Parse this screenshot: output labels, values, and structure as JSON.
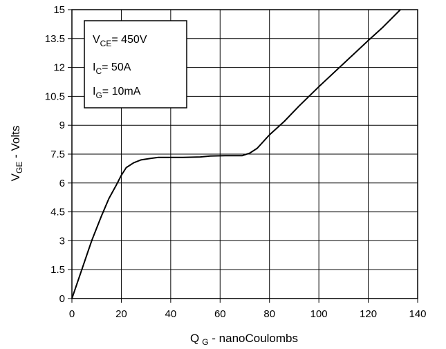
{
  "chart_data": {
    "type": "line",
    "xlabel": {
      "main": "Q",
      "sub": "G",
      "rest": " - nanoCoulombs"
    },
    "ylabel": {
      "main": "V",
      "sub": "GE",
      "rest": " - Volts"
    },
    "xlim": [
      0,
      140
    ],
    "ylim": [
      0,
      15
    ],
    "xticks": [
      0,
      20,
      40,
      60,
      80,
      100,
      120,
      140
    ],
    "yticks": [
      0,
      1.5,
      3,
      4.5,
      6,
      7.5,
      9,
      10.5,
      12,
      13.5,
      15
    ],
    "xtick_labels": [
      "0",
      "20",
      "40",
      "60",
      "80",
      "100",
      "120",
      "140"
    ],
    "ytick_labels": [
      "0",
      "1.5",
      "3",
      "4.5",
      "6",
      "7.5",
      "9",
      "10.5",
      "12",
      "13.5",
      "15"
    ],
    "grid": true,
    "legend_box": [
      {
        "main": "V",
        "sub": "CE",
        "rest": "= 450V"
      },
      {
        "main": "I",
        "sub": "C",
        "rest": "= 50A"
      },
      {
        "main": "I",
        "sub": "G",
        "rest": "= 10mA"
      }
    ],
    "series": [
      {
        "color": "#000000",
        "x": [
          0,
          4,
          8,
          12,
          15,
          18,
          20,
          22,
          25,
          28,
          32,
          35,
          40,
          45,
          52,
          56,
          62,
          69,
          72,
          75,
          80,
          86,
          92,
          100,
          110,
          120,
          126,
          133
        ],
        "y": [
          0,
          1.5,
          3.0,
          4.3,
          5.2,
          5.9,
          6.4,
          6.8,
          7.05,
          7.2,
          7.28,
          7.33,
          7.33,
          7.33,
          7.35,
          7.4,
          7.42,
          7.42,
          7.55,
          7.8,
          8.5,
          9.2,
          10.0,
          11.0,
          12.2,
          13.4,
          14.1,
          15.0
        ]
      }
    ]
  }
}
